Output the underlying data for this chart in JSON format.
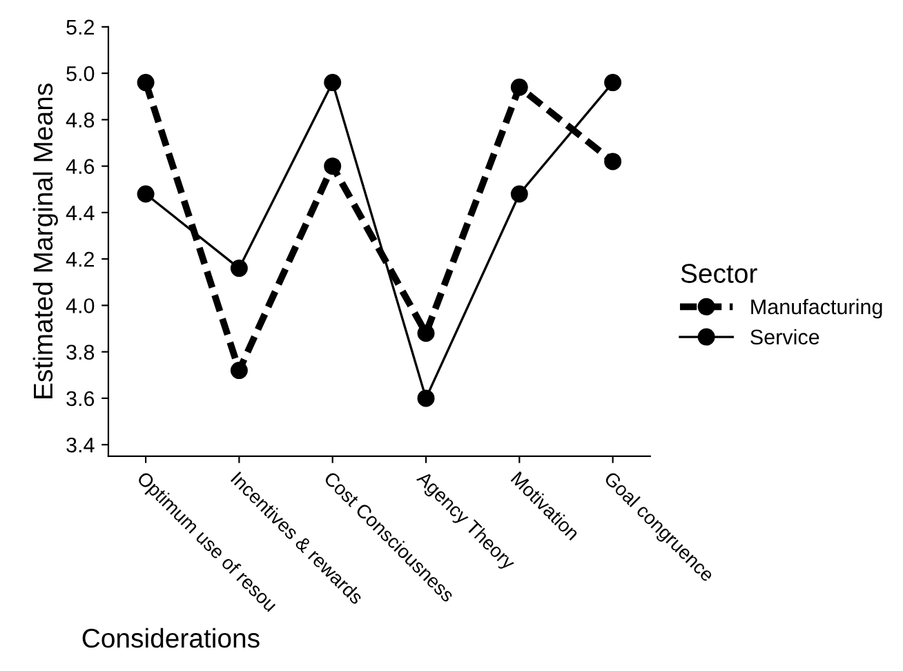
{
  "chart_data": {
    "type": "line",
    "xlabel": "Considerations",
    "ylabel": "Estimated Marginal Means",
    "legend_title": "Sector",
    "categories": [
      "Optimum use of resou",
      "Incentives & rewards",
      "Cost Consciousness",
      "Agency Theory",
      "Motivation",
      "Goal congruence"
    ],
    "series": [
      {
        "name": "Manufacturing",
        "color": "#000000",
        "line_style": "dashed",
        "values": [
          4.96,
          3.72,
          4.6,
          3.88,
          4.94,
          4.62
        ]
      },
      {
        "name": "Service",
        "color": "#000000",
        "line_style": "solid",
        "values": [
          4.48,
          4.16,
          4.96,
          3.6,
          4.48,
          4.96
        ]
      }
    ],
    "marker": "circle",
    "ylim": [
      3.35,
      5.2
    ],
    "yticks": [
      3.4,
      3.6,
      3.8,
      {
        "value": 4,
        "label": "4.0"
      },
      4.2,
      4.4,
      4.6,
      4.8,
      {
        "value": 5,
        "label": "5.0"
      },
      5.2
    ],
    "grid": false,
    "legend": "right"
  }
}
